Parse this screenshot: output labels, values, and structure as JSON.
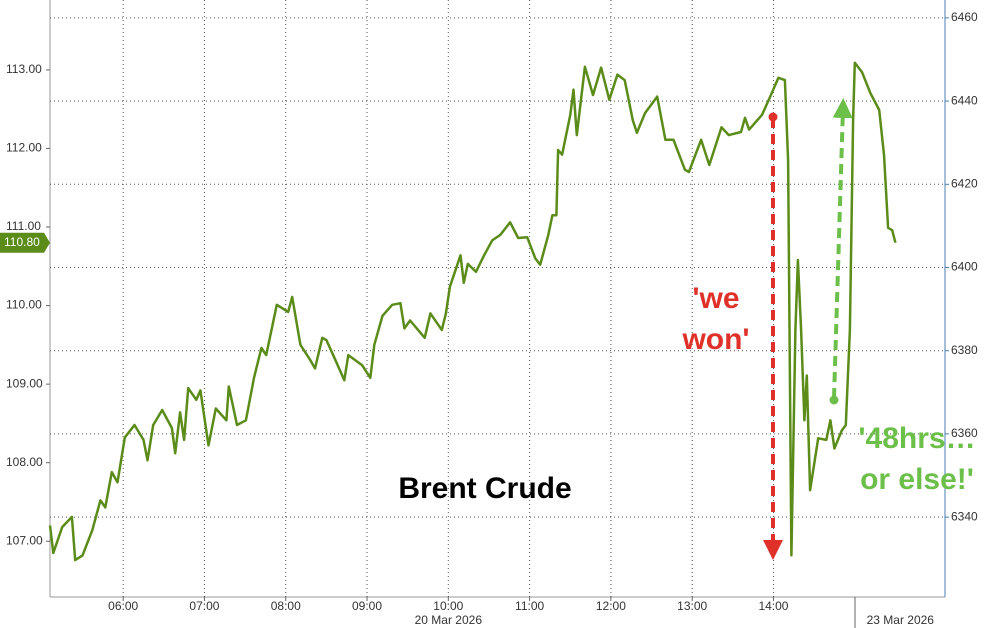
{
  "chart_data": {
    "type": "line",
    "title": "Brent Crude",
    "color": "#5b8c1a",
    "xlim": [
      5.1,
      16.11
    ],
    "ylim": [
      106.29,
      113.89
    ],
    "y2lim": [
      6320.8,
      6464.3
    ],
    "xticks": [
      {
        "value": 6,
        "label": "06:00"
      },
      {
        "value": 7,
        "label": "07:00"
      },
      {
        "value": 8,
        "label": "08:00"
      },
      {
        "value": 9,
        "label": "09:00"
      },
      {
        "value": 10,
        "label": "10:00"
      },
      {
        "value": 11,
        "label": "11:00"
      },
      {
        "value": 12,
        "label": "12:00"
      },
      {
        "value": 13,
        "label": "13:00"
      },
      {
        "value": 14,
        "label": "14:00"
      }
    ],
    "date_labels": [
      {
        "value": 10,
        "label": "20 Mar 2026"
      },
      {
        "value": 15.56,
        "label": "23 Mar 2026"
      }
    ],
    "yticks": [
      {
        "value": 107,
        "label": "107.00"
      },
      {
        "value": 108,
        "label": "108.00"
      },
      {
        "value": 109,
        "label": "109.00"
      },
      {
        "value": 110,
        "label": "110.00"
      },
      {
        "value": 111,
        "label": "111.00"
      },
      {
        "value": 112,
        "label": "112.00"
      },
      {
        "value": 113,
        "label": "113.00"
      }
    ],
    "y2ticks": [
      6340,
      6360,
      6380,
      6400,
      6420,
      6440,
      6460
    ],
    "grid": true,
    "last_price": {
      "value": 110.8,
      "label": "110.80"
    },
    "annotations": [
      [
        "'we",
        "won'"
      ],
      [
        "'48hrs…",
        "or else!'"
      ]
    ],
    "x": [
      5.1,
      5.14,
      5.25,
      5.37,
      5.41,
      5.5,
      5.62,
      5.72,
      5.78,
      5.86,
      5.93,
      6.02,
      6.14,
      6.25,
      6.3,
      6.37,
      6.48,
      6.6,
      6.64,
      6.7,
      6.75,
      6.8,
      6.9,
      6.95,
      7.05,
      7.14,
      7.27,
      7.3,
      7.4,
      7.51,
      7.61,
      7.7,
      7.76,
      7.89,
      8.03,
      8.08,
      8.18,
      8.3,
      8.36,
      8.45,
      8.5,
      8.61,
      8.72,
      8.77,
      8.94,
      9.04,
      9.09,
      9.19,
      9.31,
      9.41,
      9.46,
      9.53,
      9.71,
      9.78,
      9.92,
      9.97,
      10.02,
      10.15,
      10.19,
      10.24,
      10.34,
      10.44,
      10.54,
      10.64,
      10.76,
      10.86,
      10.97,
      11.07,
      11.13,
      11.23,
      11.28,
      11.33,
      11.35,
      11.4,
      11.5,
      11.54,
      11.58,
      11.68,
      11.78,
      11.88,
      11.98,
      12.08,
      12.17,
      12.27,
      12.32,
      12.42,
      12.57,
      12.67,
      12.77,
      12.91,
      12.96,
      13.11,
      13.21,
      13.36,
      13.45,
      13.6,
      13.65,
      13.7,
      13.86,
      13.96,
      14.06,
      14.14,
      14.18,
      14.22,
      14.27,
      14.3,
      14.34,
      14.38,
      14.41,
      14.45,
      14.55,
      14.65,
      14.7,
      14.75,
      14.84,
      14.89,
      14.94,
      14.98,
      15.0,
      15.09,
      15.19,
      15.3,
      15.36,
      15.41,
      15.46,
      15.5
    ],
    "values": [
      107.2,
      106.85,
      107.18,
      107.31,
      106.76,
      106.82,
      107.14,
      107.52,
      107.43,
      107.88,
      107.75,
      108.32,
      108.48,
      108.29,
      108.03,
      108.48,
      108.67,
      108.44,
      108.12,
      108.64,
      108.29,
      108.95,
      108.8,
      108.92,
      108.22,
      108.69,
      108.54,
      108.97,
      108.48,
      108.54,
      109.08,
      109.46,
      109.37,
      110.01,
      109.92,
      110.11,
      109.5,
      109.31,
      109.2,
      109.59,
      109.56,
      109.31,
      109.05,
      109.37,
      109.24,
      109.08,
      109.5,
      109.87,
      110.01,
      110.03,
      109.71,
      109.81,
      109.59,
      109.9,
      109.69,
      109.9,
      110.24,
      110.64,
      110.29,
      110.53,
      110.43,
      110.64,
      110.83,
      110.9,
      111.06,
      110.86,
      110.87,
      110.6,
      110.52,
      110.9,
      111.15,
      111.15,
      111.98,
      111.92,
      112.43,
      112.75,
      112.17,
      113.04,
      112.68,
      113.03,
      112.62,
      112.94,
      112.87,
      112.36,
      112.2,
      112.45,
      112.66,
      112.11,
      112.11,
      111.73,
      111.7,
      112.11,
      111.79,
      112.27,
      112.17,
      112.21,
      112.39,
      112.24,
      112.43,
      112.66,
      112.9,
      112.87,
      111.85,
      106.82,
      109.69,
      110.58,
      109.69,
      108.54,
      109.11,
      107.65,
      108.31,
      108.29,
      108.54,
      108.18,
      108.41,
      108.48,
      109.69,
      112.36,
      113.09,
      112.97,
      112.71,
      112.49,
      111.92,
      110.99,
      110.96,
      110.8
    ]
  }
}
